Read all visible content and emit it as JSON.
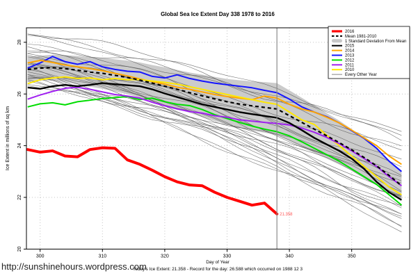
{
  "title": "Global Sea Ice Extent Day 338 1978 to 2016",
  "watermark": "http://sunshinehours.wordpress.com",
  "x_axis_label": "Day of Year",
  "footer_center": "Today's Ice Extent: 21.358  - Record for the day: 26.588 which occurred on 1988 12 3",
  "y_axis_label": "Ice Extent in millions of sq km",
  "annotation": {
    "label": "21.358",
    "day": 338,
    "value": 21.358,
    "color": "#ff5555"
  },
  "marker": {
    "day": 338,
    "color": "#8c8c8c"
  },
  "colors": {
    "red_2016": "#ff0000",
    "mean": "#000000",
    "band": "#c8c8c8",
    "y2015": "#000000",
    "y2014": "#ffa500",
    "y2013": "#1414ff",
    "y2012": "#00dd00",
    "y2011": "#a020f0",
    "y2010": "#ffe800",
    "every_other_year": "#4d4d4d"
  },
  "legend": {
    "items": [
      {
        "label": "2016",
        "swatch": "thick",
        "color": "#ff0000"
      },
      {
        "label": "Mean 1981-2010",
        "swatch": "dashed",
        "color": "#000000"
      },
      {
        "label": "1 Standard Deviation From Mean",
        "swatch": "band",
        "color": "#c8c8c8"
      },
      {
        "label": "2015",
        "swatch": "line",
        "color": "#000000"
      },
      {
        "label": "2014",
        "swatch": "line",
        "color": "#ffa500"
      },
      {
        "label": "2013",
        "swatch": "line",
        "color": "#1414ff"
      },
      {
        "label": "2012",
        "swatch": "line",
        "color": "#00dd00"
      },
      {
        "label": "2011",
        "swatch": "line",
        "color": "#a020f0"
      },
      {
        "label": "2010",
        "swatch": "line",
        "color": "#ffe800"
      },
      {
        "label": "Every Other Year",
        "swatch": "thin",
        "color": "#666666"
      }
    ]
  },
  "chart_data": {
    "type": "line",
    "title": "Global Sea Ice Extent Day 338 1978 to 2016",
    "xlabel": "Day of Year",
    "ylabel": "Ice Extent in millions of sq km",
    "x_ticks": [
      300,
      310,
      320,
      330,
      340,
      350
    ],
    "y_ticks": [
      20,
      22,
      24,
      26,
      28
    ],
    "x_range": [
      297.8,
      359.3
    ],
    "y_range": [
      20.0,
      28.56
    ],
    "grid": true,
    "legend_position": "top-right",
    "days": [
      298,
      300,
      302,
      304,
      306,
      308,
      310,
      312,
      314,
      316,
      318,
      320,
      322,
      324,
      326,
      328,
      330,
      332,
      334,
      336,
      338,
      340,
      342,
      344,
      346,
      348,
      350,
      352,
      354,
      356,
      358
    ],
    "mean_1981_2010": [
      26.95,
      27.0,
      27.02,
      26.98,
      26.92,
      26.85,
      26.8,
      26.72,
      26.64,
      26.54,
      26.42,
      26.3,
      26.18,
      26.05,
      25.93,
      25.81,
      25.7,
      25.61,
      25.54,
      25.48,
      25.42,
      25.16,
      24.9,
      24.64,
      24.38,
      24.12,
      23.84,
      23.54,
      23.22,
      22.85,
      22.45
    ],
    "std_dev": [
      0.48,
      0.48,
      0.5,
      0.52,
      0.55,
      0.57,
      0.6,
      0.62,
      0.65,
      0.68,
      0.7,
      0.73,
      0.75,
      0.78,
      0.82,
      0.85,
      0.88,
      0.92,
      0.95,
      0.98,
      1.0,
      0.98,
      0.95,
      0.92,
      0.88,
      0.85,
      0.8,
      0.75,
      0.68,
      0.6,
      0.52
    ],
    "series": [
      {
        "name": "2013",
        "color_key": "y2013",
        "width": 2,
        "values": [
          27.0,
          27.2,
          27.45,
          27.25,
          27.15,
          27.25,
          27.05,
          26.95,
          26.88,
          26.85,
          26.68,
          26.62,
          26.74,
          26.6,
          26.5,
          26.42,
          26.36,
          26.3,
          26.24,
          26.14,
          26.05,
          25.8,
          25.5,
          25.3,
          25.12,
          24.88,
          24.58,
          24.28,
          23.9,
          23.4,
          23.0
        ]
      },
      {
        "name": "2014",
        "color_key": "y2014",
        "width": 2,
        "values": [
          27.2,
          27.3,
          27.22,
          27.12,
          27.05,
          26.98,
          26.9,
          26.8,
          26.7,
          26.58,
          26.48,
          26.38,
          26.26,
          26.18,
          26.08,
          25.98,
          25.9,
          25.84,
          25.78,
          25.92,
          25.84,
          25.6,
          25.42,
          25.3,
          25.1,
          24.88,
          24.6,
          24.3,
          24.0,
          23.6,
          23.28
        ]
      },
      {
        "name": "2010",
        "color_key": "y2010",
        "width": 2,
        "values": [
          26.4,
          26.55,
          26.62,
          26.66,
          26.6,
          26.62,
          26.55,
          26.6,
          26.55,
          26.56,
          26.5,
          26.45,
          26.38,
          26.28,
          26.18,
          26.08,
          25.98,
          25.88,
          25.78,
          25.68,
          25.6,
          25.3,
          25.0,
          24.82,
          24.4,
          24.0,
          23.6,
          23.2,
          22.8,
          22.4,
          22.1
        ]
      },
      {
        "name": "2012",
        "color_key": "y2012",
        "width": 2,
        "values": [
          25.5,
          25.62,
          25.66,
          25.58,
          25.7,
          25.76,
          25.82,
          25.86,
          25.9,
          25.78,
          25.84,
          25.7,
          25.6,
          25.55,
          25.4,
          25.2,
          25.05,
          24.9,
          24.76,
          24.64,
          24.54,
          24.38,
          24.15,
          23.9,
          23.65,
          23.4,
          23.1,
          22.8,
          22.5,
          22.1,
          21.7
        ]
      },
      {
        "name": "2011",
        "color_key": "y2011",
        "width": 2,
        "values": [
          25.8,
          25.96,
          26.1,
          26.22,
          26.26,
          26.18,
          26.08,
          25.98,
          25.92,
          25.84,
          25.68,
          25.54,
          25.42,
          25.32,
          25.26,
          25.16,
          25.1,
          25.0,
          24.95,
          24.9,
          24.86,
          24.8,
          24.68,
          24.52,
          24.32,
          24.08,
          23.8,
          23.5,
          23.2,
          22.8,
          22.45
        ]
      },
      {
        "name": "2015",
        "color_key": "y2015",
        "width": 2.4,
        "values": [
          26.25,
          26.2,
          26.3,
          26.35,
          26.3,
          26.35,
          26.42,
          26.38,
          26.34,
          26.3,
          26.18,
          26.02,
          25.88,
          25.74,
          25.6,
          25.5,
          25.4,
          25.3,
          25.22,
          25.15,
          25.08,
          24.88,
          24.6,
          24.3,
          24.05,
          23.8,
          23.5,
          23.1,
          22.6,
          22.2,
          21.9
        ]
      }
    ],
    "series_2016": {
      "name": "2016",
      "color_key": "red_2016",
      "width": 4,
      "days": [
        298,
        300,
        302,
        304,
        306,
        308,
        310,
        312,
        314,
        316,
        318,
        320,
        322,
        324,
        326,
        328,
        330,
        332,
        334,
        336,
        338
      ],
      "values": [
        23.85,
        23.75,
        23.8,
        23.6,
        23.57,
        23.85,
        23.92,
        23.9,
        23.45,
        23.28,
        23.05,
        22.8,
        22.6,
        22.48,
        22.45,
        22.2,
        22.0,
        21.85,
        21.7,
        21.78,
        21.358
      ]
    },
    "background": {
      "name": "Every Other Year",
      "lines": [
        {
          "start": 28.3,
          "end": 24.6,
          "seed": 1
        },
        {
          "start": 28.45,
          "end": 24.2,
          "seed": 2
        },
        {
          "start": 28.1,
          "end": 23.9,
          "seed": 3
        },
        {
          "start": 27.95,
          "end": 24.4,
          "seed": 4
        },
        {
          "start": 27.8,
          "end": 23.3,
          "seed": 5
        },
        {
          "start": 27.7,
          "end": 22.6,
          "seed": 6
        },
        {
          "start": 27.6,
          "end": 23.8,
          "seed": 7
        },
        {
          "start": 27.55,
          "end": 22.9,
          "seed": 8
        },
        {
          "start": 27.45,
          "end": 22.3,
          "seed": 9
        },
        {
          "start": 27.35,
          "end": 23.1,
          "seed": 10
        },
        {
          "start": 27.3,
          "end": 21.8,
          "seed": 11
        },
        {
          "start": 27.2,
          "end": 22.7,
          "seed": 12
        },
        {
          "start": 27.15,
          "end": 21.4,
          "seed": 13
        },
        {
          "start": 27.1,
          "end": 22.5,
          "seed": 14
        },
        {
          "start": 27.0,
          "end": 21.9,
          "seed": 15
        },
        {
          "start": 26.95,
          "end": 22.2,
          "seed": 16
        },
        {
          "start": 26.9,
          "end": 21.1,
          "seed": 17
        },
        {
          "start": 26.85,
          "end": 22.4,
          "seed": 18
        },
        {
          "start": 26.8,
          "end": 20.8,
          "seed": 19
        },
        {
          "start": 26.75,
          "end": 21.6,
          "seed": 20
        },
        {
          "start": 26.7,
          "end": 22.0,
          "seed": 21
        },
        {
          "start": 26.65,
          "end": 21.2,
          "seed": 22
        },
        {
          "start": 26.55,
          "end": 20.7,
          "seed": 23
        },
        {
          "start": 26.5,
          "end": 21.5,
          "seed": 24
        },
        {
          "start": 26.45,
          "end": 22.1,
          "seed": 25
        },
        {
          "start": 26.4,
          "end": 20.9,
          "seed": 26
        },
        {
          "start": 26.35,
          "end": 21.3,
          "seed": 27
        }
      ]
    }
  }
}
